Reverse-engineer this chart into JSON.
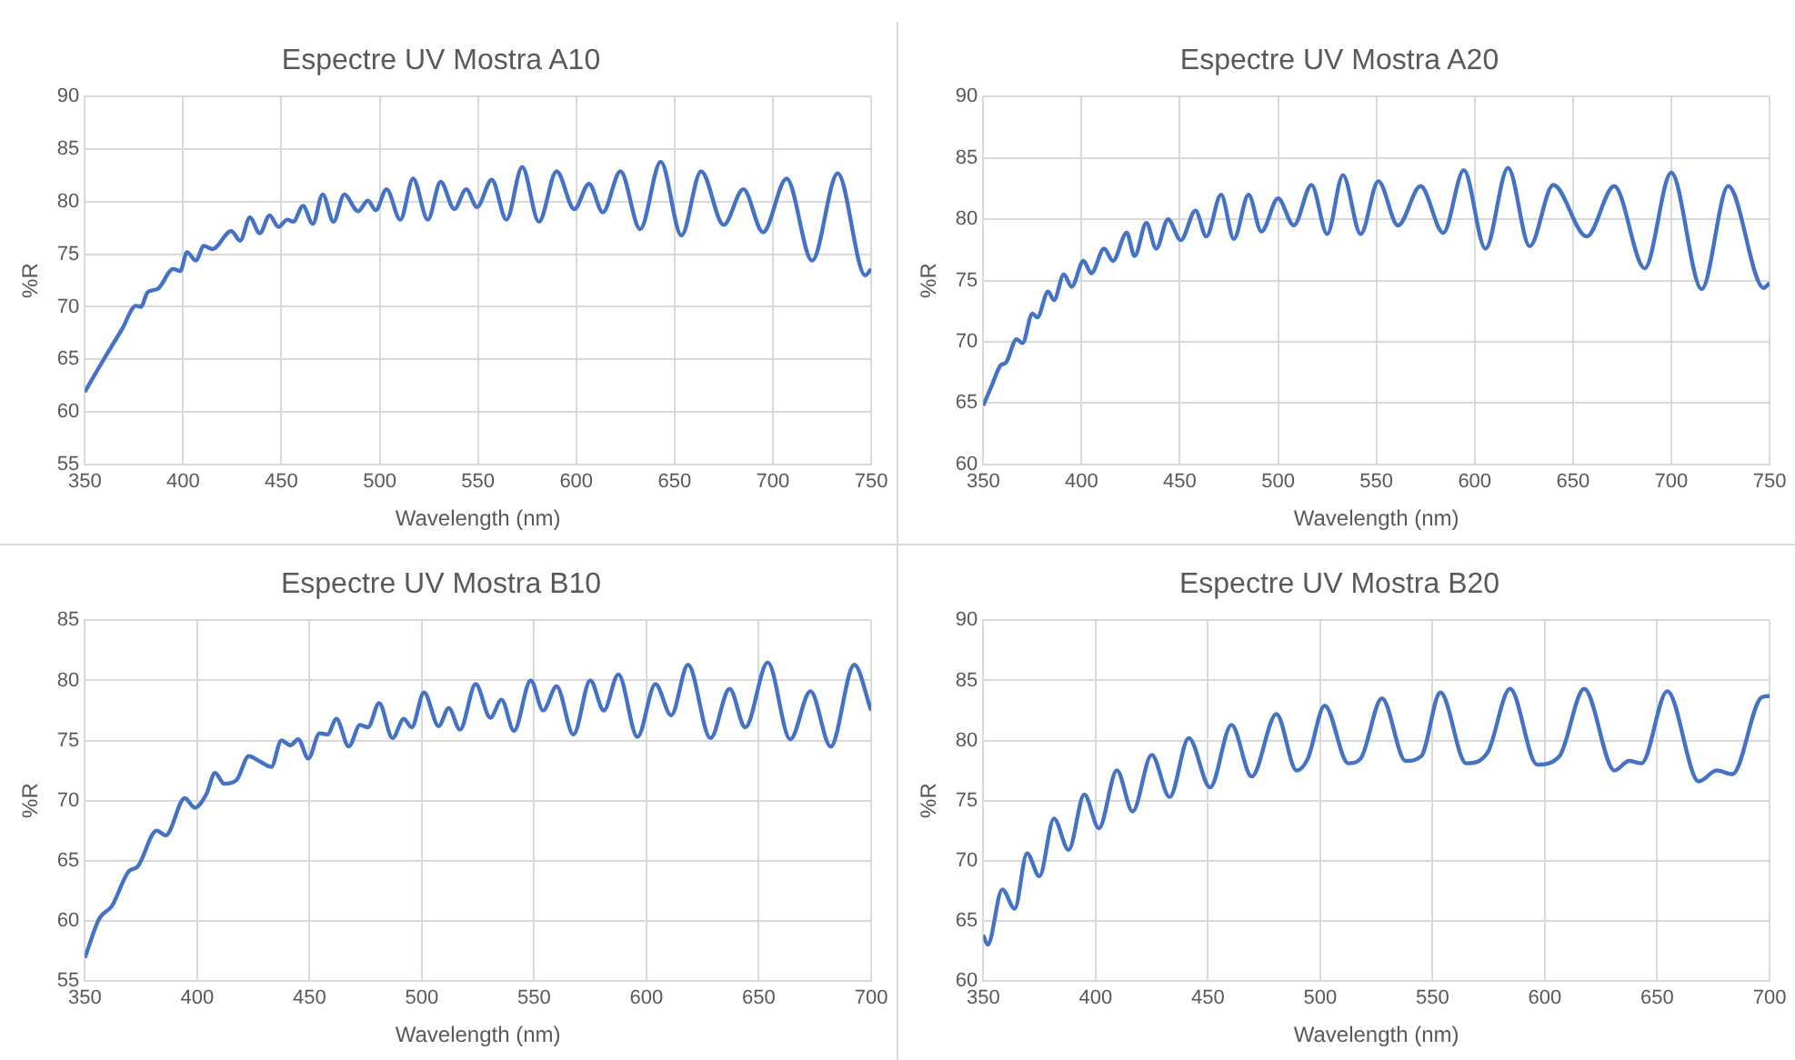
{
  "chart_data": [
    {
      "type": "line",
      "title": "Espectre UV Mostra A10",
      "xlabel": "Wavelength (nm)",
      "ylabel": "%R",
      "color": "#4472c4",
      "marker": "none",
      "grid": true,
      "xlim": [
        350,
        750
      ],
      "xticks": [
        350,
        400,
        450,
        500,
        550,
        600,
        650,
        700,
        750
      ],
      "ylim": [
        55,
        90
      ],
      "yticks": [
        55,
        60,
        65,
        70,
        75,
        80,
        85,
        90
      ],
      "x": [
        350,
        359,
        369,
        376,
        378.5,
        382,
        387,
        395,
        398.5,
        402,
        406.5,
        410.5,
        415,
        424.5,
        429,
        434,
        439,
        444,
        448.5,
        453,
        456,
        461,
        466,
        471,
        476.5,
        482,
        489,
        494,
        498,
        503.5,
        510.5,
        517,
        524.5,
        531,
        538,
        544,
        549.5,
        557,
        564.5,
        572.5,
        581,
        590,
        599,
        606.5,
        613.5,
        622.5,
        632.5,
        643,
        653.5,
        663.5,
        675,
        685,
        695,
        707,
        720,
        733,
        747,
        750
      ],
      "values": [
        61.9,
        64.8,
        67.9,
        70.1,
        70.0,
        71.4,
        71.7,
        73.6,
        73.4,
        75.2,
        74.4,
        75.8,
        75.5,
        77.2,
        76.3,
        78.5,
        77.0,
        78.7,
        77.6,
        78.3,
        78.1,
        79.6,
        77.9,
        80.7,
        78.1,
        80.7,
        79.1,
        80.1,
        79.2,
        81.2,
        78.3,
        82.2,
        78.3,
        81.9,
        79.3,
        81.2,
        79.5,
        82.1,
        78.3,
        83.3,
        78.1,
        82.9,
        79.3,
        81.7,
        79.0,
        82.9,
        77.4,
        83.8,
        76.8,
        82.9,
        77.8,
        81.2,
        77.1,
        82.2,
        74.4,
        82.7,
        73.0,
        73.6
      ]
    },
    {
      "type": "line",
      "title": "Espectre UV Mostra A20",
      "xlabel": "Wavelength (nm)",
      "ylabel": "%R",
      "color": "#4472c4",
      "marker": "none",
      "grid": true,
      "xlim": [
        350,
        750
      ],
      "xticks": [
        350,
        400,
        450,
        500,
        550,
        600,
        650,
        700,
        750
      ],
      "ylim": [
        60,
        90
      ],
      "yticks": [
        60,
        65,
        70,
        75,
        80,
        85,
        90
      ],
      "x": [
        350,
        354,
        359,
        361.5,
        367,
        370,
        375,
        377.5,
        383,
        386,
        391,
        395,
        401,
        405,
        411.5,
        416,
        423,
        427,
        433,
        438,
        444,
        450.5,
        458,
        463.5,
        471,
        477.5,
        485,
        491.5,
        500,
        508,
        517,
        525,
        533,
        542,
        551,
        561,
        572.5,
        584,
        594.5,
        605.5,
        617,
        628,
        640,
        657,
        671,
        686.5,
        700,
        715.5,
        729,
        747,
        750
      ],
      "values": [
        64.8,
        66.3,
        68.1,
        68.3,
        70.2,
        69.9,
        72.3,
        72.0,
        74.1,
        73.4,
        75.5,
        74.5,
        76.6,
        75.6,
        77.6,
        76.6,
        78.9,
        77.0,
        79.7,
        77.6,
        80.0,
        78.3,
        80.7,
        78.6,
        82.0,
        78.4,
        82.0,
        79.0,
        81.7,
        79.5,
        82.8,
        78.8,
        83.6,
        78.8,
        83.1,
        79.5,
        82.7,
        78.9,
        84.0,
        77.6,
        84.2,
        77.8,
        82.8,
        78.6,
        82.7,
        76.0,
        83.8,
        74.3,
        82.7,
        74.4,
        74.8
      ]
    },
    {
      "type": "line",
      "title": "Espectre UV Mostra B10",
      "xlabel": "Wavelength (nm)",
      "ylabel": "%R",
      "color": "#4472c4",
      "marker": "none",
      "grid": true,
      "xlim": [
        350,
        700
      ],
      "xticks": [
        350,
        400,
        450,
        500,
        550,
        600,
        650,
        700
      ],
      "ylim": [
        55,
        85
      ],
      "yticks": [
        55,
        60,
        65,
        70,
        75,
        80,
        85
      ],
      "x": [
        350,
        356.5,
        362,
        369.5,
        373.5,
        382,
        386,
        394.5,
        399,
        404,
        408,
        412,
        417.5,
        423,
        427.5,
        433,
        437.5,
        441.5,
        445,
        449.5,
        454.5,
        458,
        462,
        467.5,
        472.5,
        476,
        481,
        487,
        492,
        495.5,
        501,
        507.5,
        512,
        517,
        524,
        530.5,
        535.5,
        541,
        548.5,
        554,
        560,
        567.5,
        575,
        581,
        587.5,
        596,
        604,
        611,
        618.5,
        628.5,
        637,
        644,
        654,
        664,
        673,
        682,
        692.5,
        700
      ],
      "values": [
        56.9,
        60.2,
        61.2,
        64.1,
        64.5,
        67.5,
        67.1,
        70.2,
        69.4,
        70.5,
        72.3,
        71.4,
        71.7,
        73.7,
        73.3,
        72.8,
        75.0,
        74.6,
        75.1,
        73.5,
        75.6,
        75.5,
        76.8,
        74.5,
        76.3,
        76.1,
        78.1,
        75.2,
        76.8,
        76.1,
        79.0,
        76.2,
        77.7,
        75.9,
        79.7,
        76.9,
        78.4,
        75.8,
        80.0,
        77.5,
        79.5,
        75.5,
        80.0,
        77.5,
        80.5,
        75.3,
        79.7,
        77.1,
        81.3,
        75.2,
        79.3,
        76.1,
        81.5,
        75.1,
        79.1,
        74.5,
        81.3,
        77.5
      ]
    },
    {
      "type": "line",
      "title": "Espectre UV Mostra B20",
      "xlabel": "Wavelength (nm)",
      "ylabel": "%R",
      "color": "#4472c4",
      "marker": "none",
      "grid": true,
      "xlim": [
        350,
        700
      ],
      "xticks": [
        350,
        400,
        450,
        500,
        550,
        600,
        650,
        700
      ],
      "ylim": [
        60,
        90
      ],
      "yticks": [
        60,
        65,
        70,
        75,
        80,
        85,
        90
      ],
      "x": [
        350,
        352,
        358.5,
        364,
        369.5,
        375,
        381.5,
        388,
        395,
        401.5,
        409.5,
        416.5,
        425,
        433,
        441.5,
        451,
        460.5,
        469.5,
        480.5,
        489.5,
        494.5,
        502,
        512.5,
        518,
        527.5,
        538,
        545,
        553.5,
        565,
        574.5,
        584.5,
        596.5,
        606.5,
        617.5,
        631,
        637.5,
        643,
        654.5,
        668.5,
        676.5,
        683.5,
        696.5,
        700
      ],
      "values": [
        63.8,
        63.0,
        67.6,
        66.0,
        70.6,
        68.7,
        73.5,
        70.9,
        75.5,
        72.7,
        77.5,
        74.1,
        78.8,
        75.3,
        80.2,
        76.1,
        81.3,
        77.0,
        82.2,
        77.5,
        78.5,
        82.9,
        78.1,
        78.5,
        83.5,
        78.3,
        78.7,
        84.0,
        78.1,
        79.0,
        84.3,
        78.0,
        78.7,
        84.3,
        77.5,
        78.3,
        78.1,
        84.1,
        76.6,
        77.5,
        77.2,
        83.6,
        83.7
      ]
    }
  ]
}
